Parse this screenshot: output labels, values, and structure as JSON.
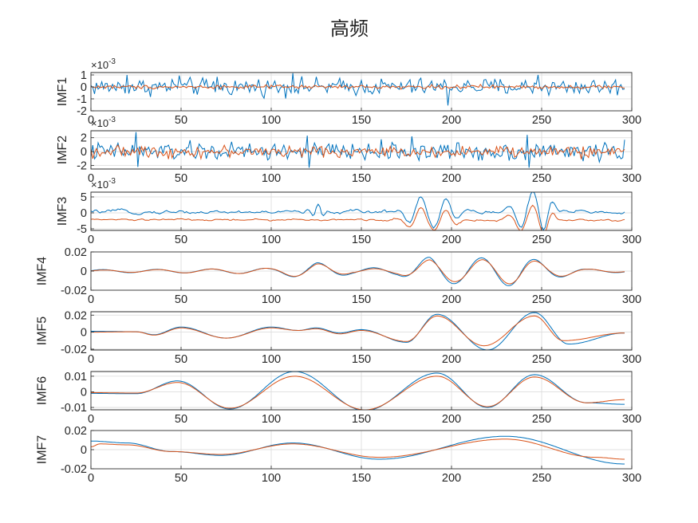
{
  "title": "高频",
  "colors": {
    "series_1": "#0072BD",
    "series_2": "#D95319",
    "axis": "#262626",
    "grid": "#d9d9d9"
  },
  "chart_data": [
    {
      "type": "line",
      "ylabel": "IMF1",
      "exponent_label": "×10-3",
      "xlim": [
        0,
        300
      ],
      "ylim": [
        -2,
        1.2
      ],
      "grid": true,
      "xticks": [
        "0",
        "50",
        "100",
        "150",
        "200",
        "250",
        "300"
      ],
      "yticks": [
        {
          "v": 1,
          "t": "1"
        },
        {
          "v": 0,
          "t": "0"
        },
        {
          "v": -1,
          "t": "-1"
        },
        {
          "v": -2,
          "t": "-2"
        }
      ],
      "series": [
        {
          "amp": 0.55,
          "k": 3,
          "kind": "noise",
          "spikes": [
            [
              20,
              1.0
            ],
            [
              49,
              0.95
            ],
            [
              112,
              1.15
            ],
            [
              198,
              -1.55
            ],
            [
              70,
              0.85
            ],
            [
              248,
              1.0
            ]
          ]
        },
        {
          "amp": 0.12,
          "k": 4,
          "kind": "noise",
          "spikes": []
        }
      ]
    },
    {
      "type": "line",
      "ylabel": "IMF2",
      "exponent_label": "×10-3",
      "xlim": [
        0,
        300
      ],
      "ylim": [
        -2.5,
        3
      ],
      "grid": true,
      "xticks": [
        "0",
        "50",
        "100",
        "150",
        "200",
        "250",
        "300"
      ],
      "yticks": [
        {
          "v": 2,
          "t": "2"
        },
        {
          "v": 0,
          "t": "0"
        },
        {
          "v": -2,
          "t": "-2"
        }
      ],
      "series": [
        {
          "amp": 1.0,
          "k": 2,
          "kind": "noise",
          "spikes": [
            [
              25,
              2.8
            ],
            [
              26,
              -2.2
            ],
            [
              120,
              2.3
            ],
            [
              121,
              -2.3
            ],
            [
              178,
              2.2
            ],
            [
              242,
              2.4
            ],
            [
              243,
              -2.3
            ],
            [
              296,
              1.7
            ]
          ]
        },
        {
          "amp": 0.6,
          "k": 2,
          "kind": "noise",
          "spikes": []
        }
      ]
    },
    {
      "type": "line",
      "ylabel": "IMF3",
      "exponent_label": "×10-3",
      "xlim": [
        0,
        300
      ],
      "ylim": [
        -5.5,
        6.5
      ],
      "grid": true,
      "xticks": [
        "0",
        "50",
        "100",
        "150",
        "200",
        "250",
        "300"
      ],
      "yticks": [
        {
          "v": 5,
          "t": "5"
        },
        {
          "v": 0,
          "t": "0"
        },
        {
          "v": -5,
          "t": "-5"
        }
      ],
      "series": [
        {
          "amp": 0.6,
          "k": 6,
          "offset": 0.3,
          "kind": "noise",
          "bursts": [
            [
              126,
              5,
              2.0,
              6
            ],
            [
              183,
              10,
              5.0,
              14
            ],
            [
              197,
              8,
              3.5,
              13
            ],
            [
              245,
              12,
              6.0,
              14
            ],
            [
              255,
              6,
              3.0,
              10
            ]
          ]
        },
        {
          "amp": 0.35,
          "k": 7,
          "offset": -2.2,
          "kind": "noise",
          "bursts": [
            [
              183,
              10,
              3.5,
              14
            ],
            [
              197,
              8,
              2.5,
              13
            ],
            [
              245,
              12,
              4.5,
              14
            ],
            [
              255,
              6,
              2.0,
              10
            ]
          ]
        }
      ]
    },
    {
      "type": "line",
      "ylabel": "IMF4",
      "exponent_label": "",
      "xlim": [
        0,
        300
      ],
      "ylim": [
        -0.02,
        0.02
      ],
      "grid": true,
      "xticks": [
        "0",
        "50",
        "100",
        "150",
        "200",
        "250",
        "300"
      ],
      "yticks": [
        {
          "v": 0.02,
          "t": "0.02"
        },
        {
          "v": 0,
          "t": "0"
        },
        {
          "v": -0.02,
          "t": "-0.02"
        }
      ],
      "series": [
        {
          "kind": "wave",
          "period": 30,
          "phase": 0.2,
          "envelope": [
            [
              0,
              0.0015
            ],
            [
              60,
              0.002
            ],
            [
              100,
              0.003
            ],
            [
              125,
              0.009
            ],
            [
              145,
              0.003
            ],
            [
              170,
              0.004
            ],
            [
              188,
              0.015
            ],
            [
              203,
              0.013
            ],
            [
              220,
              0.014
            ],
            [
              238,
              0.016
            ],
            [
              255,
              0.008
            ],
            [
              275,
              0.002
            ],
            [
              296,
              0.0015
            ]
          ]
        },
        {
          "kind": "wave",
          "period": 30,
          "phase": 0.1,
          "envelope": [
            [
              0,
              0.001
            ],
            [
              60,
              0.002
            ],
            [
              100,
              0.003
            ],
            [
              125,
              0.008
            ],
            [
              145,
              0.002
            ],
            [
              170,
              0.003
            ],
            [
              188,
              0.012
            ],
            [
              203,
              0.011
            ],
            [
              220,
              0.012
            ],
            [
              238,
              0.014
            ],
            [
              255,
              0.007
            ],
            [
              275,
              0.002
            ],
            [
              296,
              0.001
            ]
          ]
        }
      ]
    },
    {
      "type": "line",
      "ylabel": "IMF5",
      "exponent_label": "",
      "xlim": [
        0,
        300
      ],
      "ylim": [
        -0.021,
        0.024
      ],
      "grid": true,
      "xticks": [
        "0",
        "50",
        "100",
        "150",
        "200",
        "250",
        "300"
      ],
      "yticks": [
        {
          "v": 0.02,
          "t": "0.02"
        },
        {
          "v": 0,
          "t": "0"
        },
        {
          "v": -0.02,
          "t": "-0.02"
        }
      ],
      "series": [
        {
          "kind": "points",
          "pts": [
            [
              0,
              0.001
            ],
            [
              25,
              0.0005
            ],
            [
              35,
              -0.003
            ],
            [
              50,
              0.006
            ],
            [
              75,
              -0.007
            ],
            [
              100,
              0.006
            ],
            [
              115,
              0.002
            ],
            [
              125,
              0.005
            ],
            [
              138,
              -0.001
            ],
            [
              150,
              0.003
            ],
            [
              175,
              -0.012
            ],
            [
              192,
              0.021
            ],
            [
              220,
              -0.021
            ],
            [
              246,
              0.023
            ],
            [
              265,
              -0.014
            ],
            [
              296,
              -0.001
            ]
          ]
        },
        {
          "kind": "points",
          "pts": [
            [
              0,
              0.0
            ],
            [
              25,
              0.0005
            ],
            [
              35,
              -0.0035
            ],
            [
              50,
              0.005
            ],
            [
              75,
              -0.007
            ],
            [
              100,
              0.005
            ],
            [
              115,
              0.002
            ],
            [
              125,
              0.004
            ],
            [
              138,
              -0.002
            ],
            [
              150,
              0.002
            ],
            [
              175,
              -0.011
            ],
            [
              192,
              0.019
            ],
            [
              218,
              -0.016
            ],
            [
              246,
              0.019
            ],
            [
              262,
              -0.01
            ],
            [
              296,
              -0.001
            ]
          ]
        }
      ]
    },
    {
      "type": "line",
      "ylabel": "IMF6",
      "exponent_label": "",
      "xlim": [
        0,
        300
      ],
      "ylim": [
        -0.0115,
        0.013
      ],
      "grid": true,
      "xticks": [
        "0",
        "50",
        "100",
        "150",
        "200",
        "250",
        "300"
      ],
      "yticks": [
        {
          "v": 0.01,
          "t": "0.01"
        },
        {
          "v": 0,
          "t": "0"
        },
        {
          "v": -0.01,
          "t": "-0.01"
        }
      ],
      "series": [
        {
          "kind": "points",
          "pts": [
            [
              0,
              -0.001
            ],
            [
              25,
              -0.0012
            ],
            [
              48,
              0.007
            ],
            [
              77,
              -0.011
            ],
            [
              113,
              0.013
            ],
            [
              152,
              -0.012
            ],
            [
              192,
              0.012
            ],
            [
              220,
              -0.01
            ],
            [
              246,
              0.011
            ],
            [
              275,
              -0.007
            ],
            [
              296,
              -0.008
            ]
          ]
        },
        {
          "kind": "points",
          "pts": [
            [
              0,
              -0.0005
            ],
            [
              25,
              -0.0008
            ],
            [
              48,
              0.006
            ],
            [
              77,
              -0.0105
            ],
            [
              113,
              0.01
            ],
            [
              152,
              -0.0115
            ],
            [
              192,
              0.01
            ],
            [
              220,
              -0.0095
            ],
            [
              246,
              0.0095
            ],
            [
              275,
              -0.007
            ],
            [
              296,
              -0.005
            ]
          ]
        }
      ]
    },
    {
      "type": "line",
      "ylabel": "IMF7",
      "exponent_label": "",
      "xlim": [
        0,
        300
      ],
      "ylim": [
        -0.02,
        0.02
      ],
      "grid": true,
      "xticks": [
        "0",
        "50",
        "100",
        "150",
        "200",
        "250",
        "300"
      ],
      "yticks": [
        {
          "v": 0.02,
          "t": "0.02"
        },
        {
          "v": 0,
          "t": "0"
        },
        {
          "v": -0.02,
          "t": "-0.02"
        }
      ],
      "series": [
        {
          "kind": "points",
          "pts": [
            [
              0,
              0.009
            ],
            [
              20,
              0.007
            ],
            [
              45,
              -0.002
            ],
            [
              72,
              -0.006
            ],
            [
              112,
              0.007
            ],
            [
              160,
              -0.01
            ],
            [
              230,
              0.014
            ],
            [
              296,
              -0.015
            ]
          ]
        },
        {
          "kind": "points",
          "pts": [
            [
              0,
              0.003
            ],
            [
              5,
              0.006
            ],
            [
              20,
              0.005
            ],
            [
              45,
              -0.002
            ],
            [
              72,
              -0.005
            ],
            [
              112,
              0.006
            ],
            [
              160,
              -0.008
            ],
            [
              230,
              0.011
            ],
            [
              280,
              -0.008
            ],
            [
              296,
              -0.01
            ]
          ]
        }
      ]
    }
  ]
}
